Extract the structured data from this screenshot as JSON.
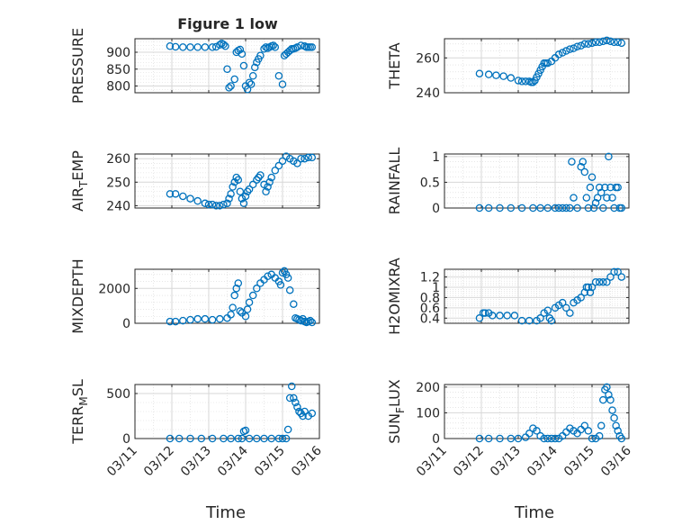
{
  "figure": {
    "title": "Figure 1 low",
    "xlabel": "Time"
  },
  "colors": {
    "marker": "#0072BD",
    "axis": "#262626",
    "grid": "#d7d7d7"
  },
  "chart_data": [
    {
      "type": "scatter",
      "ylabel": "PRESSURE",
      "ylabel_sub": "",
      "xlim": [
        0,
        5
      ],
      "ylim": [
        780,
        940
      ],
      "yticks": [
        800,
        850,
        900
      ],
      "x": [
        0.95,
        1.1,
        1.3,
        1.5,
        1.7,
        1.9,
        2.1,
        2.2,
        2.3,
        2.35,
        2.4,
        2.45,
        2.5,
        2.55,
        2.6,
        2.7,
        2.75,
        2.8,
        2.85,
        2.9,
        2.95,
        3.0,
        3.05,
        3.1,
        3.15,
        3.2,
        3.25,
        3.3,
        3.35,
        3.4,
        3.5,
        3.55,
        3.6,
        3.65,
        3.7,
        3.75,
        3.8,
        3.9,
        4.0,
        4.05,
        4.1,
        4.15,
        4.2,
        4.25,
        4.3,
        4.35,
        4.4,
        4.5,
        4.6,
        4.65,
        4.7,
        4.75,
        4.8
      ],
      "y": [
        918,
        916,
        915,
        915,
        915,
        915,
        915,
        916,
        922,
        926,
        923,
        918,
        850,
        795,
        800,
        820,
        900,
        905,
        908,
        895,
        860,
        800,
        790,
        810,
        805,
        830,
        855,
        870,
        880,
        890,
        910,
        915,
        912,
        915,
        918,
        920,
        915,
        830,
        805,
        890,
        895,
        900,
        905,
        910,
        910,
        912,
        915,
        920,
        918,
        915,
        915,
        915,
        915
      ]
    },
    {
      "type": "scatter",
      "ylabel": "THETA",
      "ylabel_sub": "",
      "xlim": [
        0,
        5
      ],
      "ylim": [
        240,
        271
      ],
      "yticks": [
        240,
        260
      ],
      "x": [
        0.95,
        1.2,
        1.4,
        1.6,
        1.8,
        2.0,
        2.1,
        2.2,
        2.3,
        2.35,
        2.4,
        2.45,
        2.5,
        2.55,
        2.6,
        2.65,
        2.7,
        2.75,
        2.8,
        2.9,
        3.0,
        3.1,
        3.2,
        3.3,
        3.4,
        3.5,
        3.6,
        3.7,
        3.8,
        3.9,
        4.0,
        4.1,
        4.2,
        4.3,
        4.4,
        4.5,
        4.6,
        4.7,
        4.8
      ],
      "y": [
        251,
        250.5,
        250,
        249.5,
        248.5,
        247,
        246.5,
        246.5,
        246.5,
        246,
        246,
        247,
        249,
        251,
        253,
        255,
        257,
        257,
        257,
        258,
        260,
        262,
        263,
        264,
        265,
        265.5,
        266.5,
        267,
        268,
        268,
        268.5,
        269,
        269,
        269.5,
        270,
        269.5,
        269,
        269,
        268.5
      ]
    },
    {
      "type": "scatter",
      "ylabel": "AIR",
      "ylabel_sub": "T",
      "ylabel_suffix": "EMP",
      "xlim": [
        0,
        5
      ],
      "ylim": [
        239,
        262
      ],
      "yticks": [
        240,
        250,
        260
      ],
      "x": [
        0.95,
        1.1,
        1.3,
        1.5,
        1.7,
        1.9,
        2.0,
        2.1,
        2.2,
        2.3,
        2.4,
        2.5,
        2.55,
        2.6,
        2.65,
        2.7,
        2.75,
        2.8,
        2.85,
        2.9,
        2.95,
        3.0,
        3.05,
        3.1,
        3.2,
        3.3,
        3.35,
        3.4,
        3.5,
        3.55,
        3.6,
        3.65,
        3.7,
        3.8,
        3.9,
        4.0,
        4.1,
        4.2,
        4.3,
        4.4,
        4.5,
        4.6,
        4.7,
        4.8
      ],
      "y": [
        245,
        245,
        244,
        243,
        242,
        241,
        240.5,
        240.5,
        240,
        240,
        240.5,
        241,
        243,
        245,
        248,
        250,
        252,
        251,
        246,
        243,
        241,
        244,
        246,
        247,
        249,
        251,
        252,
        253,
        249,
        246,
        248,
        250,
        252,
        255,
        257,
        259,
        261,
        260,
        259,
        258,
        260,
        260,
        260.5,
        260.5
      ]
    },
    {
      "type": "scatter",
      "ylabel": "RAINFALL",
      "ylabel_sub": "",
      "xlim": [
        0,
        5
      ],
      "ylim": [
        0,
        1.05
      ],
      "yticks": [
        0,
        0.5,
        1
      ],
      "x": [
        0.95,
        1.2,
        1.5,
        1.8,
        2.1,
        2.4,
        2.6,
        2.8,
        3.0,
        3.1,
        3.2,
        3.3,
        3.4,
        3.45,
        3.5,
        3.6,
        3.7,
        3.75,
        3.8,
        3.85,
        3.9,
        3.95,
        4.0,
        4.05,
        4.1,
        4.15,
        4.2,
        4.25,
        4.3,
        4.35,
        4.4,
        4.45,
        4.5,
        4.55,
        4.6,
        4.65,
        4.7,
        4.75,
        4.8
      ],
      "y": [
        0,
        0,
        0,
        0,
        0,
        0,
        0,
        0,
        0,
        0,
        0,
        0,
        0,
        0.9,
        0.2,
        0,
        0.8,
        0.9,
        0.7,
        0.2,
        0,
        0.4,
        0.6,
        0,
        0.1,
        0.2,
        0.4,
        0.3,
        0,
        0.4,
        0.2,
        1.0,
        0.4,
        0.2,
        0,
        0.4,
        0.4,
        0,
        0
      ]
    },
    {
      "type": "scatter",
      "ylabel": "MIXDEPTH",
      "ylabel_sub": "",
      "xlim": [
        0,
        5
      ],
      "ylim": [
        0,
        3100
      ],
      "yticks": [
        0,
        2000
      ],
      "x": [
        0.95,
        1.1,
        1.3,
        1.5,
        1.7,
        1.9,
        2.1,
        2.3,
        2.5,
        2.6,
        2.65,
        2.7,
        2.75,
        2.8,
        2.85,
        2.9,
        3.0,
        3.05,
        3.1,
        3.2,
        3.3,
        3.4,
        3.5,
        3.6,
        3.7,
        3.8,
        3.9,
        3.95,
        4.0,
        4.05,
        4.1,
        4.15,
        4.2,
        4.3,
        4.35,
        4.4,
        4.45,
        4.5,
        4.55,
        4.6,
        4.65,
        4.7,
        4.75,
        4.8
      ],
      "y": [
        100,
        100,
        150,
        200,
        250,
        250,
        200,
        250,
        300,
        500,
        900,
        1600,
        2000,
        2300,
        700,
        600,
        400,
        800,
        1200,
        1600,
        2000,
        2300,
        2500,
        2700,
        2800,
        2600,
        2400,
        2200,
        2900,
        3000,
        2800,
        2600,
        1900,
        1100,
        300,
        250,
        200,
        150,
        250,
        100,
        50,
        100,
        150,
        50
      ]
    },
    {
      "type": "scatter",
      "ylabel": "H2OMIXRA",
      "ylabel_sub": "",
      "xlim": [
        0,
        5
      ],
      "ylim": [
        0.3,
        1.35
      ],
      "yticks": [
        0.4,
        0.6,
        0.8,
        1,
        1.2
      ],
      "x": [
        0.95,
        1.05,
        1.1,
        1.2,
        1.3,
        1.5,
        1.7,
        1.9,
        2.1,
        2.3,
        2.5,
        2.6,
        2.7,
        2.8,
        2.85,
        2.9,
        3.0,
        3.1,
        3.2,
        3.3,
        3.4,
        3.5,
        3.6,
        3.7,
        3.8,
        3.85,
        3.9,
        3.95,
        4.0,
        4.1,
        4.2,
        4.3,
        4.4,
        4.5,
        4.6,
        4.7,
        4.8
      ],
      "y": [
        0.4,
        0.5,
        0.5,
        0.5,
        0.45,
        0.45,
        0.45,
        0.45,
        0.35,
        0.35,
        0.35,
        0.4,
        0.5,
        0.55,
        0.4,
        0.35,
        0.6,
        0.65,
        0.7,
        0.6,
        0.5,
        0.7,
        0.75,
        0.8,
        0.9,
        1.0,
        1.0,
        0.9,
        1.0,
        1.1,
        1.1,
        1.1,
        1.1,
        1.2,
        1.3,
        1.3,
        1.2
      ]
    },
    {
      "type": "scatter",
      "ylabel": "TERR",
      "ylabel_sub": "M",
      "ylabel_suffix": "SL",
      "xlim": [
        0,
        5
      ],
      "ylim": [
        0,
        600
      ],
      "yticks": [
        0,
        500
      ],
      "x": [
        0.95,
        1.2,
        1.5,
        1.8,
        2.1,
        2.4,
        2.6,
        2.8,
        2.9,
        2.95,
        3.0,
        3.1,
        3.3,
        3.5,
        3.7,
        3.9,
        4.0,
        4.1,
        4.15,
        4.2,
        4.25,
        4.3,
        4.35,
        4.4,
        4.45,
        4.5,
        4.55,
        4.6,
        4.7,
        4.8
      ],
      "y": [
        0,
        0,
        0,
        0,
        0,
        0,
        0,
        0,
        0,
        80,
        90,
        0,
        0,
        0,
        0,
        0,
        0,
        0,
        100,
        450,
        580,
        450,
        400,
        350,
        300,
        280,
        250,
        300,
        250,
        280
      ]
    },
    {
      "type": "scatter",
      "ylabel": "SUN",
      "ylabel_sub": "F",
      "ylabel_suffix": "LUX",
      "xlim": [
        0,
        5
      ],
      "ylim": [
        0,
        210
      ],
      "yticks": [
        0,
        100,
        200
      ],
      "x": [
        0.95,
        1.2,
        1.5,
        1.8,
        2.0,
        2.2,
        2.3,
        2.4,
        2.5,
        2.6,
        2.7,
        2.8,
        2.9,
        3.0,
        3.1,
        3.2,
        3.3,
        3.4,
        3.5,
        3.6,
        3.7,
        3.8,
        3.9,
        4.0,
        4.1,
        4.2,
        4.25,
        4.3,
        4.35,
        4.4,
        4.45,
        4.5,
        4.55,
        4.6,
        4.65,
        4.7,
        4.75,
        4.8
      ],
      "y": [
        0,
        0,
        0,
        0,
        0,
        5,
        20,
        40,
        30,
        10,
        0,
        0,
        0,
        0,
        0,
        10,
        25,
        40,
        30,
        20,
        35,
        50,
        30,
        0,
        0,
        10,
        50,
        150,
        190,
        200,
        170,
        150,
        110,
        80,
        50,
        30,
        10,
        0
      ]
    }
  ],
  "xtick_labels": [
    "03/11",
    "03/12",
    "03/13",
    "03/14",
    "03/15",
    "03/16"
  ]
}
